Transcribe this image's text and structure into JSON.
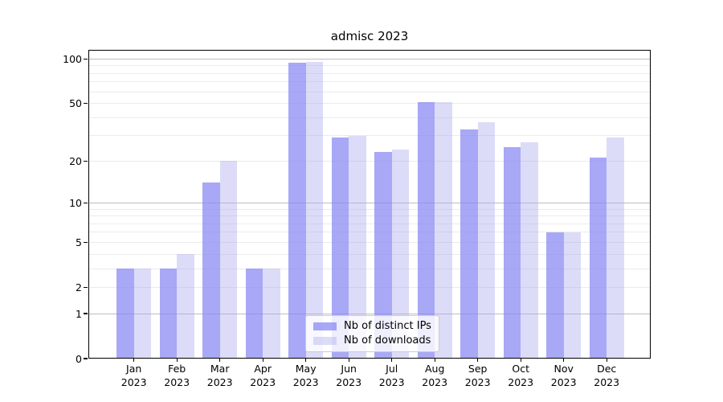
{
  "chart_data": {
    "type": "bar",
    "title": "admisc 2023",
    "categories": [
      "Jan 2023",
      "Feb 2023",
      "Mar 2023",
      "Apr 2023",
      "May 2023",
      "Jun 2023",
      "Jul 2023",
      "Aug 2023",
      "Sep 2023",
      "Oct 2023",
      "Nov 2023",
      "Dec 2023"
    ],
    "series": [
      {
        "name": "Nb of distinct IPs",
        "color": "#8686f3",
        "alpha": 0.72,
        "values": [
          3,
          3,
          14,
          3,
          94,
          29,
          23,
          51,
          33,
          25,
          6,
          21
        ]
      },
      {
        "name": "Nb of downloads",
        "color": "#acacee",
        "alpha": 0.42,
        "values": [
          3,
          4,
          20,
          3,
          96,
          30,
          24,
          51,
          37,
          27,
          6,
          29
        ]
      }
    ],
    "xlabel": "",
    "ylabel": "",
    "yscale": "log1p",
    "ylim": [
      0,
      116
    ],
    "yticks": [
      0,
      1,
      2,
      5,
      10,
      20,
      50,
      100
    ],
    "major_gridlines": [
      1,
      10,
      100
    ],
    "minor_gridlines": [
      2,
      3,
      4,
      5,
      6,
      7,
      8,
      9,
      20,
      30,
      40,
      50,
      60,
      70,
      80,
      90
    ],
    "grid": true,
    "legend_position": "lower center",
    "frame_color": "#000000",
    "major_grid_color": "#bdbdbd",
    "minor_grid_color": "#ebebeb"
  }
}
